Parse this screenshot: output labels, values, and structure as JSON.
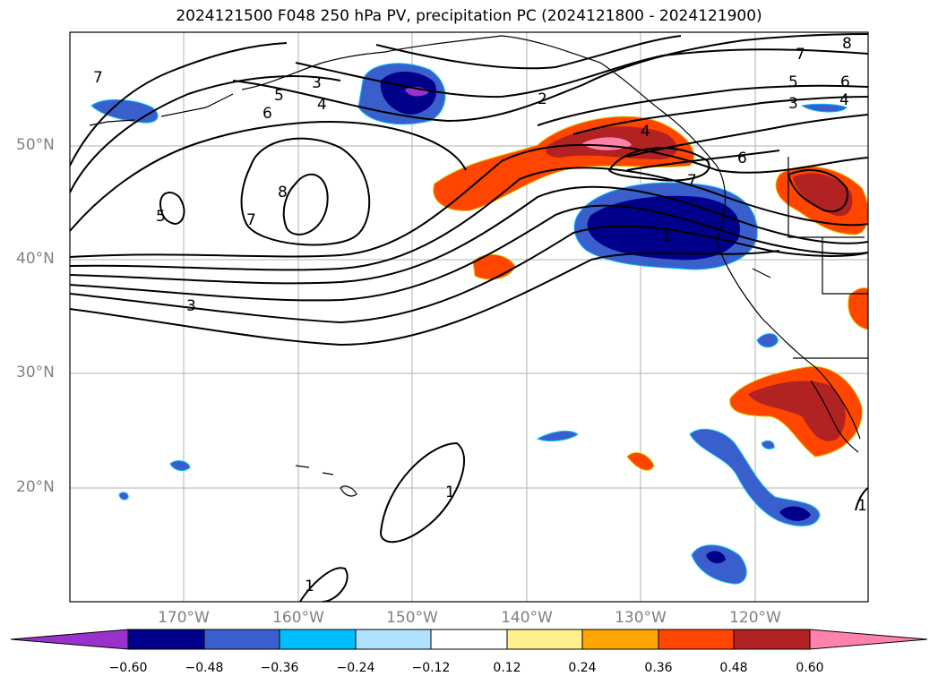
{
  "title": "2024121500 F048 250 hPa PV, precipitation PC (2024121800 - 2024121900)",
  "lat_labels": [
    "50°N",
    "40°N",
    "30°N",
    "20°N"
  ],
  "lon_labels": [
    "170°W",
    "160°W",
    "150°W",
    "140°W",
    "130°W",
    "120°W"
  ],
  "colorbar": {
    "colors": [
      "#9932cc",
      "#00008b",
      "#3a5fcd",
      "#00bfff",
      "#b0e2ff",
      "#ffffff",
      "#fff08c",
      "#ffa500",
      "#ff4500",
      "#b22222",
      "#ff82ab"
    ],
    "tick_labels": [
      "−0.60",
      "−0.48",
      "−0.36",
      "−0.24",
      "−0.12",
      "0.12",
      "0.24",
      "0.36",
      "0.48",
      "0.60"
    ]
  },
  "contour_labels": [
    "7",
    "5",
    "3",
    "4",
    "6",
    "2",
    "7",
    "6",
    "5",
    "3",
    "4",
    "8",
    "6",
    "4",
    "7",
    "1",
    "5",
    "7",
    "8",
    "3",
    "1",
    "1",
    "1"
  ]
}
